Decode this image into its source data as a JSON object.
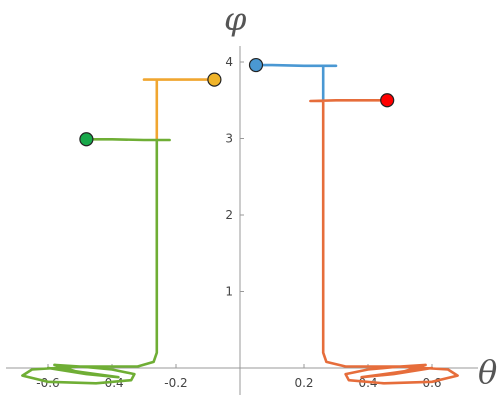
{
  "chart_data": {
    "type": "line",
    "title": "",
    "xlabel": "θ",
    "ylabel": "φ",
    "xlim": [
      -0.72,
      0.82
    ],
    "ylim": [
      -0.15,
      4.2
    ],
    "x_ticks": [
      -0.6,
      -0.4,
      -0.2,
      0.2,
      0.4,
      0.6
    ],
    "x_tick_labels": [
      "-0.6",
      "-0.4",
      "-0.2",
      "0.2",
      "0.4",
      "0.6"
    ],
    "y_ticks": [
      1,
      2,
      3,
      4
    ],
    "y_tick_labels": [
      "1",
      "2",
      "3",
      "4"
    ],
    "grid": false,
    "series": [
      {
        "color": "#4a98d3",
        "start_marker": [
          0.05,
          3.96
        ],
        "points": [
          [
            0.05,
            3.96
          ],
          [
            0.1,
            3.96
          ],
          [
            0.2,
            3.95
          ],
          [
            0.27,
            3.95
          ],
          [
            0.3,
            3.95
          ],
          [
            0.26,
            3.95
          ],
          [
            0.26,
            3.8
          ],
          [
            0.26,
            3.62
          ],
          [
            0.26,
            3.5
          ]
        ]
      },
      {
        "color": "#e66d3b",
        "start_marker": [
          0.46,
          3.5
        ],
        "points": [
          [
            0.46,
            3.5
          ],
          [
            0.4,
            3.5
          ],
          [
            0.3,
            3.5
          ],
          [
            0.22,
            3.49
          ],
          [
            0.26,
            3.49
          ],
          [
            0.26,
            3.3
          ],
          [
            0.26,
            2.5
          ],
          [
            0.26,
            1.5
          ],
          [
            0.26,
            0.5
          ],
          [
            0.26,
            0.2
          ],
          [
            0.27,
            0.08
          ],
          [
            0.33,
            0.02
          ],
          [
            0.5,
            0.02
          ],
          [
            0.65,
            -0.02
          ],
          [
            0.68,
            -0.1
          ],
          [
            0.6,
            -0.18
          ],
          [
            0.45,
            -0.2
          ],
          [
            0.34,
            -0.16
          ],
          [
            0.33,
            -0.08
          ],
          [
            0.4,
            -0.02
          ],
          [
            0.5,
            0.02
          ],
          [
            0.58,
            0.04
          ],
          [
            0.5,
            -0.06
          ],
          [
            0.42,
            -0.1
          ],
          [
            0.55,
            -0.02
          ],
          [
            0.6,
            0.0
          ],
          [
            0.48,
            -0.08
          ],
          [
            0.38,
            -0.12
          ],
          [
            0.52,
            -0.04
          ]
        ]
      },
      {
        "color": "#f0a630",
        "start_marker": [
          -0.08,
          3.77
        ],
        "points": [
          [
            -0.08,
            3.77
          ],
          [
            -0.15,
            3.77
          ],
          [
            -0.24,
            3.77
          ],
          [
            -0.3,
            3.77
          ],
          [
            -0.26,
            3.77
          ],
          [
            -0.26,
            3.6
          ],
          [
            -0.26,
            3.3
          ],
          [
            -0.26,
            3.0
          ]
        ]
      },
      {
        "color": "#6fae35",
        "start_marker": [
          -0.48,
          2.99
        ],
        "points": [
          [
            -0.48,
            2.99
          ],
          [
            -0.4,
            2.99
          ],
          [
            -0.3,
            2.98
          ],
          [
            -0.22,
            2.98
          ],
          [
            -0.26,
            2.98
          ],
          [
            -0.26,
            2.5
          ],
          [
            -0.26,
            1.5
          ],
          [
            -0.26,
            0.5
          ],
          [
            -0.26,
            0.2
          ],
          [
            -0.27,
            0.08
          ],
          [
            -0.32,
            0.02
          ],
          [
            -0.5,
            0.02
          ],
          [
            -0.65,
            -0.02
          ],
          [
            -0.68,
            -0.1
          ],
          [
            -0.6,
            -0.18
          ],
          [
            -0.45,
            -0.2
          ],
          [
            -0.34,
            -0.16
          ],
          [
            -0.33,
            -0.08
          ],
          [
            -0.4,
            -0.02
          ],
          [
            -0.5,
            0.02
          ],
          [
            -0.58,
            0.04
          ],
          [
            -0.5,
            -0.06
          ],
          [
            -0.42,
            -0.1
          ],
          [
            -0.55,
            -0.02
          ],
          [
            -0.6,
            0.0
          ],
          [
            -0.48,
            -0.08
          ],
          [
            -0.38,
            -0.12
          ],
          [
            -0.52,
            -0.04
          ]
        ]
      }
    ],
    "start_marker_colors": [
      "#4a98d3",
      "#ff0000",
      "#f0b429",
      "#18a84a"
    ]
  }
}
